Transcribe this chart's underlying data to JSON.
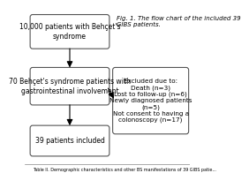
{
  "title": "Fig. 1. The flow chart of the included 39\nGIBS patients.",
  "box1_text": "10,000 patients with Behçet's\nsyndrome",
  "box2_text": "70 Behçet's syndrome patients with\ngastrointestinal involvement",
  "box3_text": "39 patients included",
  "box4_text": "Excluded due to:\nDeath (n=3)\nLost to follow-up (n=6)\nNewly diagnosed patients\n(n=5)\nNot consent to having a\ncolonoscopy (n=17)",
  "footer_text": "Table II. Demographic characteristics and other BS manifestations of 39 GIBS patie...",
  "bg_color": "#ffffff",
  "box_edge_color": "#555555",
  "box_face_color": "#ffffff",
  "text_color": "#000000",
  "arrow_color": "#000000",
  "font_size": 5.5,
  "title_font_size": 5.0
}
